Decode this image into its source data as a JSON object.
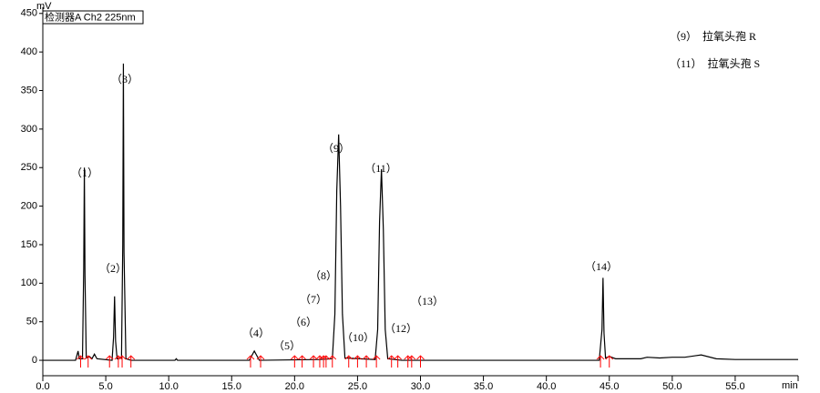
{
  "chart_data": {
    "type": "line",
    "title": "检测器A Ch2 225nm",
    "y_label": "mV",
    "x_label": "min",
    "legend_lines": [
      "（9）　拉氧头孢 R",
      "（11）　拉氧头孢 S"
    ],
    "peak_labels": [
      "（1）",
      "（2）",
      "（3）",
      "（4）",
      "（5）",
      "（6）",
      "（7）",
      "（8）",
      "（9）",
      "（10）",
      "（11）",
      "（12）",
      "（13）",
      "（14）"
    ],
    "series": [
      {
        "name": "Ch2",
        "color": "#000000",
        "x": [
          0,
          2.6,
          2.8,
          2.9,
          3.15,
          3.25,
          3.3,
          3.35,
          3.45,
          3.7,
          3.9,
          4.1,
          4.3,
          5.5,
          5.62,
          5.7,
          5.78,
          5.9,
          6.25,
          6.35,
          6.4,
          6.45,
          6.6,
          7.0,
          10.5,
          10.6,
          10.7,
          16.4,
          16.8,
          17.2,
          22.0,
          23.0,
          23.2,
          23.35,
          23.5,
          23.65,
          23.8,
          24.0,
          26.4,
          26.6,
          26.75,
          26.9,
          27.05,
          27.2,
          27.4,
          28.5,
          44.2,
          44.42,
          44.5,
          44.58,
          44.7,
          45.0,
          45.5,
          47.5,
          48.0,
          49.0,
          50.0,
          51.0,
          52.3,
          53.5,
          55.0,
          60.0
        ],
        "values": [
          0,
          0,
          12,
          2,
          2,
          120,
          250,
          110,
          3,
          5,
          2,
          8,
          2,
          0,
          30,
          83,
          25,
          2,
          3,
          150,
          385,
          140,
          2,
          0,
          0,
          2,
          0,
          0,
          12,
          0,
          1,
          2,
          60,
          220,
          293,
          200,
          60,
          3,
          1,
          40,
          180,
          248,
          170,
          40,
          2,
          0,
          0,
          40,
          107,
          35,
          3,
          5,
          2,
          2,
          4,
          3,
          4,
          4,
          7,
          2,
          1,
          1
        ]
      }
    ],
    "integration_marks": [
      3.0,
      3.6,
      5.3,
      6.0,
      6.3,
      7.0,
      16.5,
      17.3,
      20.0,
      20.6,
      21.5,
      22.0,
      22.3,
      22.5,
      23.0,
      24.3,
      25.0,
      25.7,
      26.5,
      27.7,
      28.2,
      29.0,
      29.3,
      30.0,
      44.3,
      45.0
    ],
    "marks_color": "#ff0000",
    "xlim": [
      0,
      60
    ],
    "ylim": [
      -20,
      458
    ],
    "xticks": [
      {
        "value": 0,
        "label": "0.0"
      },
      {
        "value": 5,
        "label": "5.0"
      },
      {
        "value": 10,
        "label": "10.0"
      },
      {
        "value": 15,
        "label": "15.0"
      },
      {
        "value": 20,
        "label": "20.0"
      },
      {
        "value": 25,
        "label": "25.0"
      },
      {
        "value": 30,
        "label": "30.0"
      },
      {
        "value": 35,
        "label": "35.0"
      },
      {
        "value": 40,
        "label": "40.0"
      },
      {
        "value": 45,
        "label": "45.0"
      },
      {
        "value": 50,
        "label": "50.0"
      },
      {
        "value": 55,
        "label": "55.0"
      }
    ],
    "yticks": [
      0,
      50,
      100,
      150,
      200,
      250,
      300,
      350,
      400,
      450
    ]
  }
}
